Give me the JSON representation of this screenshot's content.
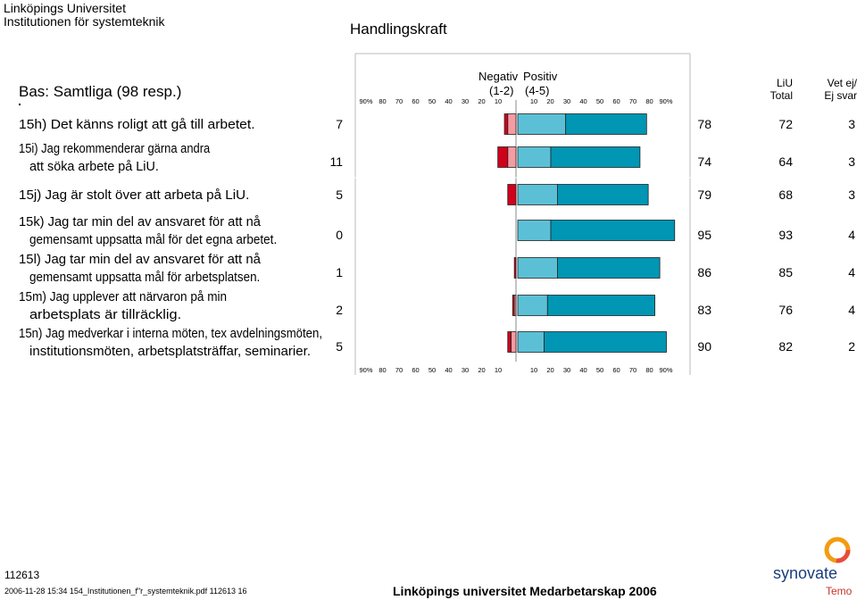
{
  "header": {
    "university": "Linköpings Universitet",
    "institution": "Institutionen för systemteknik",
    "page_title": "Handlingskraft",
    "base": "Bas: Samtliga (98 resp.)"
  },
  "legend": {
    "negative": "Negativ",
    "negative_scale": "(1-2)",
    "positive": "Positiv",
    "positive_scale": "(4-5)"
  },
  "columns": {
    "liu_line1": "LiU",
    "liu_line2": "Total",
    "vet_line1": "Vet ej/",
    "vet_line2": "Ej svar"
  },
  "axis": {
    "left_ticks": [
      "90%",
      "80",
      "70",
      "60",
      "50",
      "40",
      "30",
      "20",
      "10"
    ],
    "right_ticks": [
      "10",
      "20",
      "30",
      "40",
      "50",
      "60",
      "70",
      "80",
      "90%"
    ]
  },
  "colors": {
    "neg_strong": "#d0021b",
    "neg_light": "#f59ca3",
    "pos_light": "#5bc0d6",
    "pos_strong": "#0096b4",
    "bar_border": "#222222"
  },
  "chart_data": {
    "type": "bar",
    "orientation": "horizontal-diverging",
    "xlim": [
      -90,
      90
    ],
    "rows": [
      {
        "label_lines": [
          "15h) Det känns roligt att gå till arbetet."
        ],
        "neg_total": "7",
        "neg_strong": 2,
        "neg_light": 5,
        "pos_light": 29,
        "pos_strong": 49,
        "pos_total": "78",
        "liu_total": "72",
        "vet_ej": "3"
      },
      {
        "label_lines": [
          "15i) Jag rekommenderar gärna andra",
          "att söka arbete på LiU."
        ],
        "neg_total": "11",
        "neg_strong": 6,
        "neg_light": 5,
        "pos_light": 20,
        "pos_strong": 54,
        "pos_total": "74",
        "liu_total": "64",
        "vet_ej": "3"
      },
      {
        "label_lines": [
          "15j) Jag är stolt över att arbeta på LiU."
        ],
        "neg_total": "5",
        "neg_strong": 5,
        "neg_light": 0,
        "pos_light": 24,
        "pos_strong": 55,
        "pos_total": "79",
        "liu_total": "68",
        "vet_ej": "3"
      },
      {
        "label_lines": [
          "15k) Jag tar min del av ansvaret för att nå",
          "gemensamt uppsatta mål för det egna arbetet."
        ],
        "neg_total": "0",
        "neg_strong": 0,
        "neg_light": 0,
        "pos_light": 20,
        "pos_strong": 75,
        "pos_total": "95",
        "liu_total": "93",
        "vet_ej": "4"
      },
      {
        "label_lines": [
          "15l) Jag tar min del av ansvaret för att nå",
          "gemensamt uppsatta mål för arbetsplatsen."
        ],
        "neg_total": "1",
        "neg_strong": 1,
        "neg_light": 0,
        "pos_light": 24,
        "pos_strong": 62,
        "pos_total": "86",
        "liu_total": "85",
        "vet_ej": "4"
      },
      {
        "label_lines": [
          "15m) Jag upplever att närvaron på min",
          "arbetsplats är tillräcklig."
        ],
        "neg_total": "2",
        "neg_strong": 1,
        "neg_light": 1,
        "pos_light": 18,
        "pos_strong": 65,
        "pos_total": "83",
        "liu_total": "76",
        "vet_ej": "4"
      },
      {
        "label_lines": [
          "15n) Jag medverkar i interna möten, tex avdelningsmöten,",
          "institutionsmöten, arbetsplatsträffar, seminarier."
        ],
        "neg_total": "5",
        "neg_strong": 2,
        "neg_light": 3,
        "pos_light": 16,
        "pos_strong": 74,
        "pos_total": "90",
        "liu_total": "82",
        "vet_ej": "2"
      }
    ]
  },
  "footer": {
    "code": "112613",
    "file_line": "2006-11-28 15:34 154_Institutionen_f\"r_systemteknik.pdf 112613 16",
    "title": "Linköpings universitet Medarbetarskap 2006",
    "logo_name": "synovate",
    "logo_sub": "Temo",
    "logo_icon": "synovate-ring-icon"
  }
}
